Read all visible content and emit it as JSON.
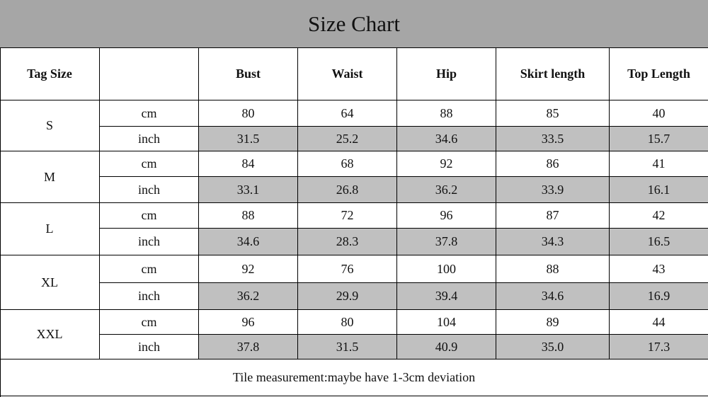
{
  "title": "Size Chart",
  "table": {
    "headers": [
      "Tag Size",
      "Bust",
      "Waist",
      "Hip",
      "Skirt length",
      "Top Length"
    ],
    "sizes": [
      {
        "tag": "S",
        "rows": [
          {
            "unit": "cm",
            "values": [
              "80",
              "64",
              "88",
              "85",
              "40"
            ]
          },
          {
            "unit": "inch",
            "values": [
              "31.5",
              "25.2",
              "34.6",
              "33.5",
              "15.7"
            ]
          }
        ]
      },
      {
        "tag": "M",
        "rows": [
          {
            "unit": "cm",
            "values": [
              "84",
              "68",
              "92",
              "86",
              "41"
            ]
          },
          {
            "unit": "inch",
            "values": [
              "33.1",
              "26.8",
              "36.2",
              "33.9",
              "16.1"
            ]
          }
        ]
      },
      {
        "tag": "L",
        "rows": [
          {
            "unit": "cm",
            "values": [
              "88",
              "72",
              "96",
              "87",
              "42"
            ]
          },
          {
            "unit": "inch",
            "values": [
              "34.6",
              "28.3",
              "37.8",
              "34.3",
              "16.5"
            ]
          }
        ]
      },
      {
        "tag": "XL",
        "rows": [
          {
            "unit": "cm",
            "values": [
              "92",
              "76",
              "100",
              "88",
              "43"
            ]
          },
          {
            "unit": "inch",
            "values": [
              "36.2",
              "29.9",
              "39.4",
              "34.6",
              "16.9"
            ]
          }
        ]
      },
      {
        "tag": "XXL",
        "rows": [
          {
            "unit": "cm",
            "values": [
              "96",
              "80",
              "104",
              "89",
              "44"
            ]
          },
          {
            "unit": "inch",
            "values": [
              "37.8",
              "31.5",
              "40.9",
              "35.0",
              "17.3"
            ]
          }
        ]
      }
    ]
  },
  "note": "Tile measurement:maybe have 1-3cm deviation"
}
